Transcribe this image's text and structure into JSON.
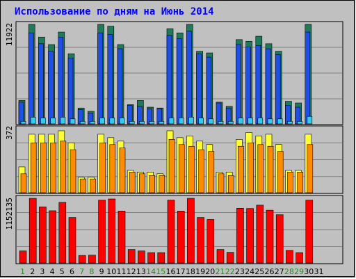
{
  "title": "Использование по дням на Июнь 2014",
  "colors": {
    "background": "#c0c0c0",
    "grid": "#808080",
    "top_back": "#1e7a5a",
    "top_front": "#1e4fe6",
    "top_small": "#33ccee",
    "mid_back": "#ffff33",
    "mid_front": "#ff8c00",
    "bottom": "#ff0000",
    "weekday_label": "#000000",
    "weekend_label": "#228b22"
  },
  "chart_data": {
    "type": "bar",
    "categories": [
      "1",
      "2",
      "3",
      "4",
      "5",
      "6",
      "7",
      "8",
      "9",
      "10",
      "11",
      "12",
      "13",
      "14",
      "15",
      "16",
      "17",
      "18",
      "19",
      "20",
      "21",
      "22",
      "23",
      "24",
      "25",
      "26",
      "27",
      "28",
      "29",
      "30",
      "31"
    ],
    "weekend_days": [
      "1",
      "7",
      "8",
      "14",
      "15",
      "21",
      "22",
      "28",
      "29"
    ],
    "panels": [
      {
        "ylabel": "11922",
        "ymax": 11922,
        "series": [
          {
            "values": [
              2800,
              11922,
              10400,
              9500,
              11000,
              8400,
              1900,
              1500,
              11922,
              11700,
              9500,
              2300,
              2800,
              2000,
              1900,
              11400,
              10900,
              11922,
              8700,
              8500,
              2600,
              2100,
              10100,
              9900,
              10500,
              9600,
              8700,
              2700,
              2500,
              11922,
              0
            ]
          },
          {
            "values": [
              2600,
              10900,
              9600,
              8700,
              10400,
              7900,
              1700,
              1300,
              10900,
              10700,
              9000,
              2200,
              2100,
              1800,
              1800,
              10600,
              10200,
              11100,
              8400,
              8000,
              2500,
              1900,
              9500,
              9200,
              9400,
              9000,
              8300,
              2200,
              2000,
              11000,
              0
            ]
          },
          {
            "values": [
              300,
              800,
              700,
              700,
              800,
              600,
              300,
              300,
              700,
              700,
              700,
              300,
              300,
              300,
              300,
              700,
              700,
              800,
              700,
              600,
              300,
              300,
              700,
              700,
              700,
              600,
              600,
              300,
              300,
              900,
              0
            ]
          }
        ]
      },
      {
        "ylabel": "372",
        "ymax": 372,
        "series": [
          {
            "values": [
              150,
              340,
              340,
              340,
              360,
              290,
              90,
              90,
              340,
              320,
              300,
              130,
              120,
              120,
              110,
              360,
              320,
              330,
              300,
              280,
              120,
              120,
              310,
              350,
              330,
              340,
              280,
              130,
              130,
              340,
              0
            ]
          },
          {
            "values": [
              110,
              290,
              290,
              290,
              300,
              250,
              80,
              80,
              290,
              280,
              260,
              120,
              110,
              100,
              100,
              310,
              280,
              270,
              250,
              240,
              110,
              100,
              270,
              290,
              280,
              270,
              240,
              120,
              120,
              280,
              0
            ]
          }
        ]
      },
      {
        "ylabel": "1152135",
        "ymax": 1152135,
        "series": [
          {
            "values": [
              215000,
              1152135,
              1000000,
              930000,
              1080000,
              810000,
              135000,
              140000,
              1120000,
              1140000,
              925000,
              240000,
              215000,
              185000,
              185000,
              1120000,
              925000,
              1152135,
              810000,
              775000,
              240000,
              190000,
              975000,
              970000,
              1030000,
              940000,
              860000,
              225000,
              185000,
              1120000,
              0
            ]
          }
        ]
      }
    ]
  }
}
